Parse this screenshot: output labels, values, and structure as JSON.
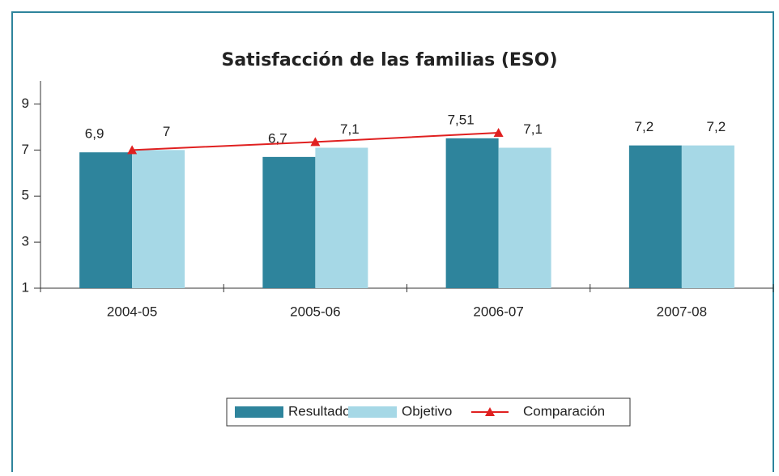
{
  "chart_data": {
    "type": "bar_line",
    "title": "Satisfacción de las familias (ESO)",
    "categories": [
      "2004-05",
      "2005-06",
      "2006-07",
      "2007-08"
    ],
    "series": [
      {
        "name": "Resultado",
        "type": "bar",
        "color": "#2e849c",
        "values": [
          6.9,
          6.7,
          7.51,
          7.2
        ],
        "value_labels": [
          "6,9",
          "6,7",
          "7,51",
          "7,2"
        ]
      },
      {
        "name": "Objetivo",
        "type": "bar",
        "color": "#a6d8e6",
        "values": [
          7,
          7.1,
          7.1,
          7.2
        ],
        "value_labels": [
          "7",
          "7,1",
          "7,1",
          "7,2"
        ]
      },
      {
        "name": "Comparación",
        "type": "line",
        "color": "#e02020",
        "values": [
          7,
          7.35,
          7.75,
          null
        ]
      }
    ],
    "ylim": [
      1,
      10
    ],
    "yticks": [
      1,
      3,
      5,
      7,
      9
    ],
    "legend": "bottom"
  }
}
